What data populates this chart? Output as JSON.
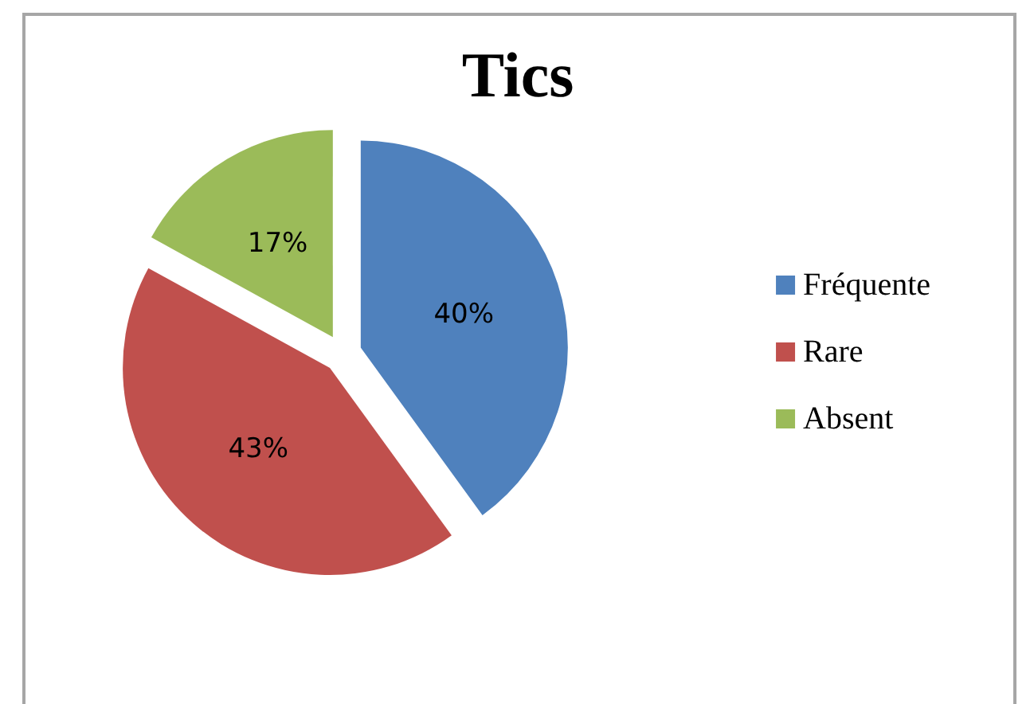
{
  "chart_data": {
    "type": "pie",
    "title": "Tics",
    "categories": [
      "Fréquente",
      "Rare",
      "Absent"
    ],
    "values": [
      40,
      43,
      17
    ],
    "value_labels": [
      "40%",
      "43%",
      "17%"
    ],
    "colors": [
      "#4f81bd",
      "#c0504d",
      "#9bbb59"
    ],
    "legend": "right"
  }
}
